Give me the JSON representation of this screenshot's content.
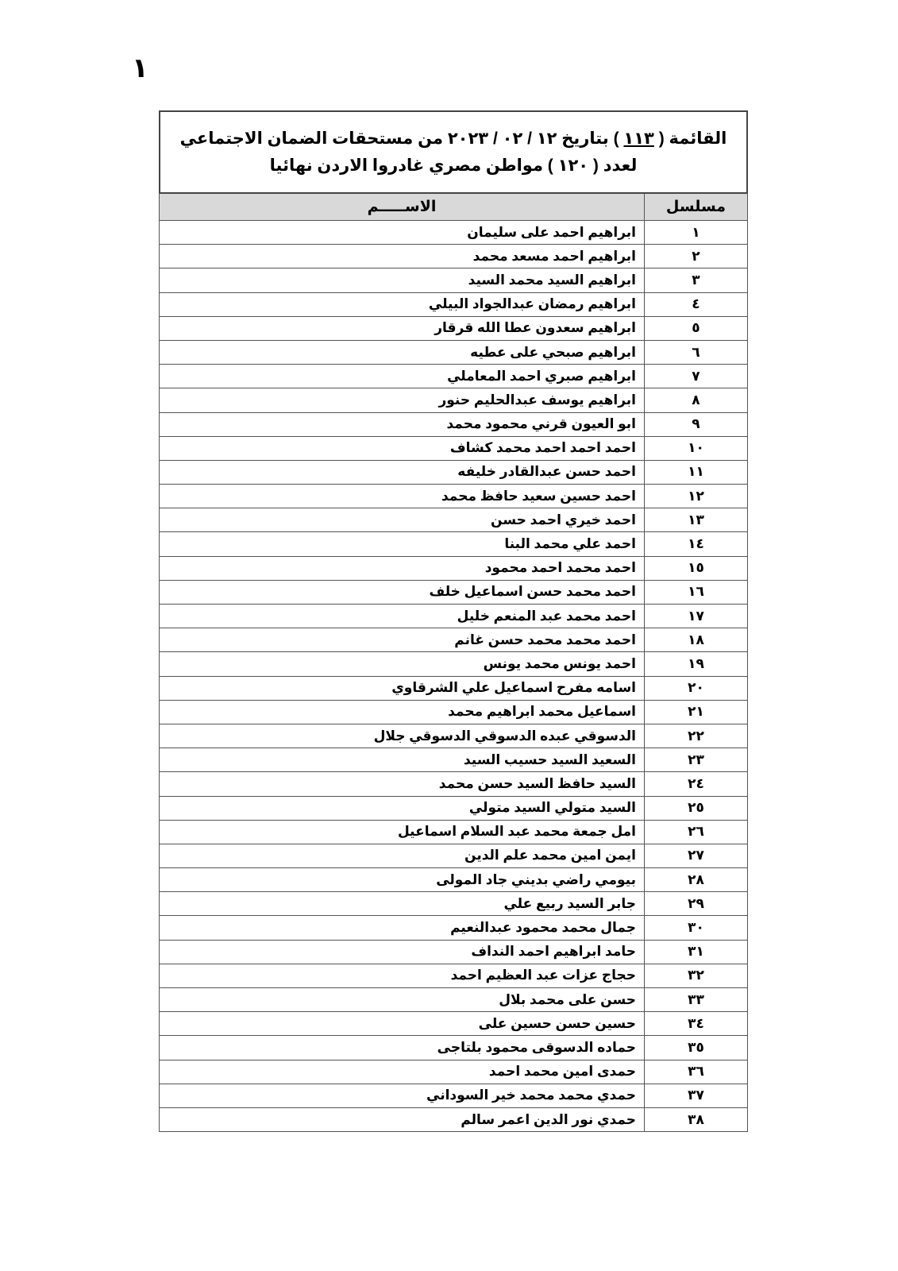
{
  "page_number": "١",
  "title": {
    "line1_prefix": "القائمة (",
    "list_number": "١١٣",
    "line1_suffix": ") بتاريخ ١٢ / ٠٢ / ٢٠٢٣ من مستحقات الضمان الاجتماعي",
    "line2": "لعدد ( ١٢٠ ) مواطن مصري غادروا الاردن نهائيا"
  },
  "columns": {
    "serial": "مسلسل",
    "name": "الاســـــم"
  },
  "rows": [
    {
      "serial": "١",
      "name": "ابراهيم احمد على سليمان"
    },
    {
      "serial": "٢",
      "name": "ابراهيم احمد مسعد محمد"
    },
    {
      "serial": "٣",
      "name": "ابراهيم السيد محمد السيد"
    },
    {
      "serial": "٤",
      "name": "ابراهيم رمضان عبدالجواد البيلي"
    },
    {
      "serial": "٥",
      "name": "ابراهيم سعدون عطا الله قرقار"
    },
    {
      "serial": "٦",
      "name": "ابراهيم صبحي على عطيه"
    },
    {
      "serial": "٧",
      "name": "ابراهيم صبري احمد المعاملي"
    },
    {
      "serial": "٨",
      "name": "ابراهيم يوسف عبدالحليم حنور"
    },
    {
      "serial": "٩",
      "name": "ابو العيون قرني محمود محمد"
    },
    {
      "serial": "١٠",
      "name": "احمد احمد احمد محمد كشاف"
    },
    {
      "serial": "١١",
      "name": "احمد حسن عبدالقادر خليفه"
    },
    {
      "serial": "١٢",
      "name": "احمد حسين سعيد حافظ محمد"
    },
    {
      "serial": "١٣",
      "name": "احمد خيري احمد حسن"
    },
    {
      "serial": "١٤",
      "name": "احمد علي محمد البنا"
    },
    {
      "serial": "١٥",
      "name": "احمد محمد احمد محمود"
    },
    {
      "serial": "١٦",
      "name": "احمد محمد حسن اسماعيل خلف"
    },
    {
      "serial": "١٧",
      "name": "احمد محمد عبد المنعم خليل"
    },
    {
      "serial": "١٨",
      "name": "احمد محمد محمد حسن غانم"
    },
    {
      "serial": "١٩",
      "name": "احمد يونس محمد يونس"
    },
    {
      "serial": "٢٠",
      "name": "اسامه مفرح اسماعيل علي الشرقاوي"
    },
    {
      "serial": "٢١",
      "name": "اسماعيل محمد ابراهيم محمد"
    },
    {
      "serial": "٢٢",
      "name": "الدسوقي عبده الدسوقي الدسوقي جلال"
    },
    {
      "serial": "٢٣",
      "name": "السعيد السيد حسيب السيد"
    },
    {
      "serial": "٢٤",
      "name": "السيد حافظ السيد حسن محمد"
    },
    {
      "serial": "٢٥",
      "name": "السيد متولي السيد متولي"
    },
    {
      "serial": "٢٦",
      "name": "امل جمعة محمد عبد السلام اسماعيل"
    },
    {
      "serial": "٢٧",
      "name": "ايمن امين محمد علم الدين"
    },
    {
      "serial": "٢٨",
      "name": "بيومي راضي بديني جاد المولى"
    },
    {
      "serial": "٢٩",
      "name": "جابر السيد ربيع علي"
    },
    {
      "serial": "٣٠",
      "name": "جمال محمد محمود عبدالنعيم"
    },
    {
      "serial": "٣١",
      "name": "حامد ابراهيم احمد النداف"
    },
    {
      "serial": "٣٢",
      "name": "حجاج عزات عبد العظيم احمد"
    },
    {
      "serial": "٣٣",
      "name": "حسن على محمد بلال"
    },
    {
      "serial": "٣٤",
      "name": "حسين حسن حسين على"
    },
    {
      "serial": "٣٥",
      "name": "حماده الدسوقى محمود بلتاجى"
    },
    {
      "serial": "٣٦",
      "name": "حمدى امين محمد احمد"
    },
    {
      "serial": "٣٧",
      "name": "حمدي محمد محمد خير السوداني"
    },
    {
      "serial": "٣٨",
      "name": "حمدي نور الدين اعمر سالم"
    }
  ]
}
